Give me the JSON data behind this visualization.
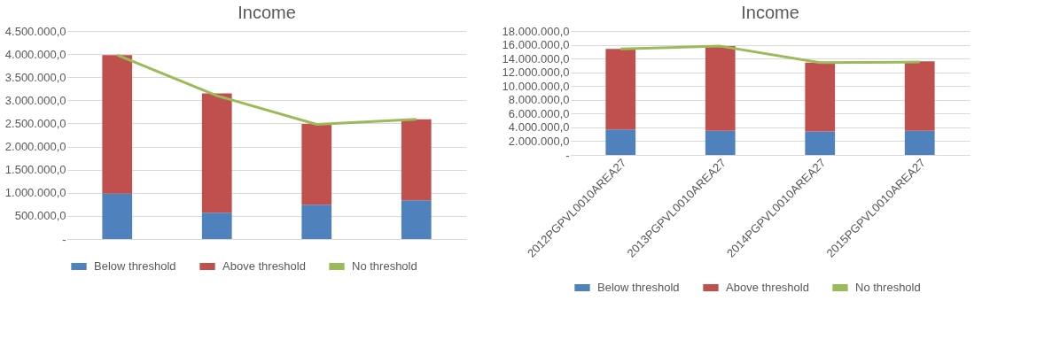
{
  "chart_data": [
    {
      "type": "bar",
      "title": "Income",
      "stacked": true,
      "categories": [
        null,
        null,
        null,
        null
      ],
      "grid": "y",
      "legend": "bottom",
      "tick_labels": "y",
      "ylim": [
        0,
        4500000
      ],
      "yticks": [
        {
          "value": 0,
          "label": "-"
        },
        {
          "value": 500000,
          "label": "500.000,0"
        },
        {
          "value": 1000000,
          "label": "1.000.000,0"
        },
        {
          "value": 1500000,
          "label": "1.500.000,0"
        },
        {
          "value": 2000000,
          "label": "2.000.000,0"
        },
        {
          "value": 2500000,
          "label": "2.500.000,0"
        },
        {
          "value": 3000000,
          "label": "3.000.000,0"
        },
        {
          "value": 3500000,
          "label": "3.500.000,0"
        },
        {
          "value": 4000000,
          "label": "4.000.000,0"
        },
        {
          "value": 4500000,
          "label": "4.500.000,0"
        }
      ],
      "series": [
        {
          "name": "Below threshold",
          "color": "#4f81bd",
          "values": [
            980000,
            570000,
            740000,
            840000
          ]
        },
        {
          "name": "Above threshold",
          "color": "#c0504d",
          "values": [
            3000000,
            2580000,
            1750000,
            1750000
          ]
        },
        {
          "name": "No threshold",
          "color": "#9bbb59",
          "type": "line",
          "values": [
            3980000,
            3100000,
            2480000,
            2590000
          ]
        }
      ]
    },
    {
      "type": "bar",
      "title": "Income",
      "stacked": true,
      "categories": [
        "2012PGPVL0010AREA27",
        "2013PGPVL0010AREA27",
        "2014PGPVL0010AREA27",
        "2015PGPVL0010AREA27"
      ],
      "grid": "y",
      "legend": "bottom",
      "ylim": [
        0,
        18000000
      ],
      "yticks": [
        {
          "value": 0,
          "label": "-"
        },
        {
          "value": 2000000,
          "label": "2.000.000,0"
        },
        {
          "value": 4000000,
          "label": "4.000.000,0"
        },
        {
          "value": 6000000,
          "label": "6.000.000,0"
        },
        {
          "value": 8000000,
          "label": "8.000.000,0"
        },
        {
          "value": 10000000,
          "label": "10.000.000,0"
        },
        {
          "value": 12000000,
          "label": "12.000.000,0"
        },
        {
          "value": 14000000,
          "label": "14.000.000,0"
        },
        {
          "value": 16000000,
          "label": "16.000.000,0"
        },
        {
          "value": 18000000,
          "label": "18.000.000,0"
        }
      ],
      "series": [
        {
          "name": "Below threshold",
          "color": "#4f81bd",
          "values": [
            3700000,
            3500000,
            3400000,
            3500000
          ]
        },
        {
          "name": "Above threshold",
          "color": "#c0504d",
          "values": [
            11700000,
            12300000,
            10000000,
            10100000
          ]
        },
        {
          "name": "No threshold",
          "color": "#9bbb59",
          "type": "line",
          "values": [
            15400000,
            15800000,
            13400000,
            13500000
          ]
        }
      ]
    }
  ]
}
